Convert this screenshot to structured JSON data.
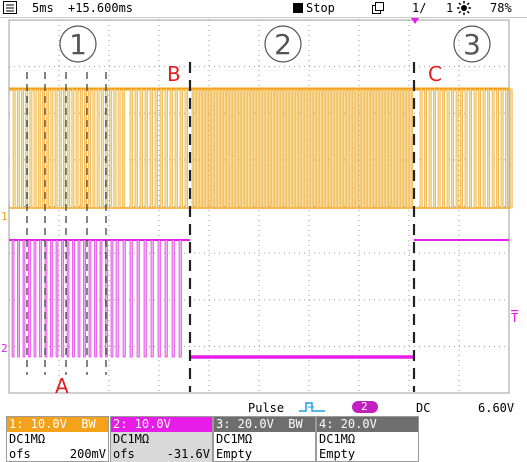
{
  "colors": {
    "ch1": "#f5a21b",
    "ch1_fill": "#efe0a8",
    "ch2": "#e81ce8",
    "ch2_fill": "#e8b4ec",
    "grid": "#9e9e9e",
    "annotation": "#e02020",
    "trig_badge": "#c020c0"
  },
  "topbar": {
    "timebase": "5ms",
    "position": "+15.600ms",
    "run_state": "Stop",
    "seq_counter": "1/",
    "seq_total": "1",
    "battery": "78%"
  },
  "annotations": {
    "region_1": "1",
    "region_2": "2",
    "region_3": "3",
    "marker_A": "A",
    "marker_B": "B",
    "marker_C": "C"
  },
  "channel_markers": {
    "ch1": "1",
    "ch2": "2",
    "trigger_level": "T"
  },
  "trigger_bar": {
    "mode": "Pulse",
    "source": "2",
    "coupling": "DC",
    "level": "6.60V"
  },
  "channels": [
    {
      "header": "1: 10.0V  BW",
      "coupling": "DC1MΩ",
      "ofs_label": "ofs",
      "ofs_value": "200mV"
    },
    {
      "header": "2: 10.0V",
      "coupling": "DC1MΩ",
      "ofs_label": "ofs",
      "ofs_value": "-31.6V"
    },
    {
      "header": "3: 20.0V  BW",
      "coupling": "DC1MΩ",
      "ofs_label": "Empty",
      "ofs_value": ""
    },
    {
      "header": "4: 20.0V",
      "coupling": "DC1MΩ",
      "ofs_label": "Empty",
      "ofs_value": ""
    }
  ]
}
